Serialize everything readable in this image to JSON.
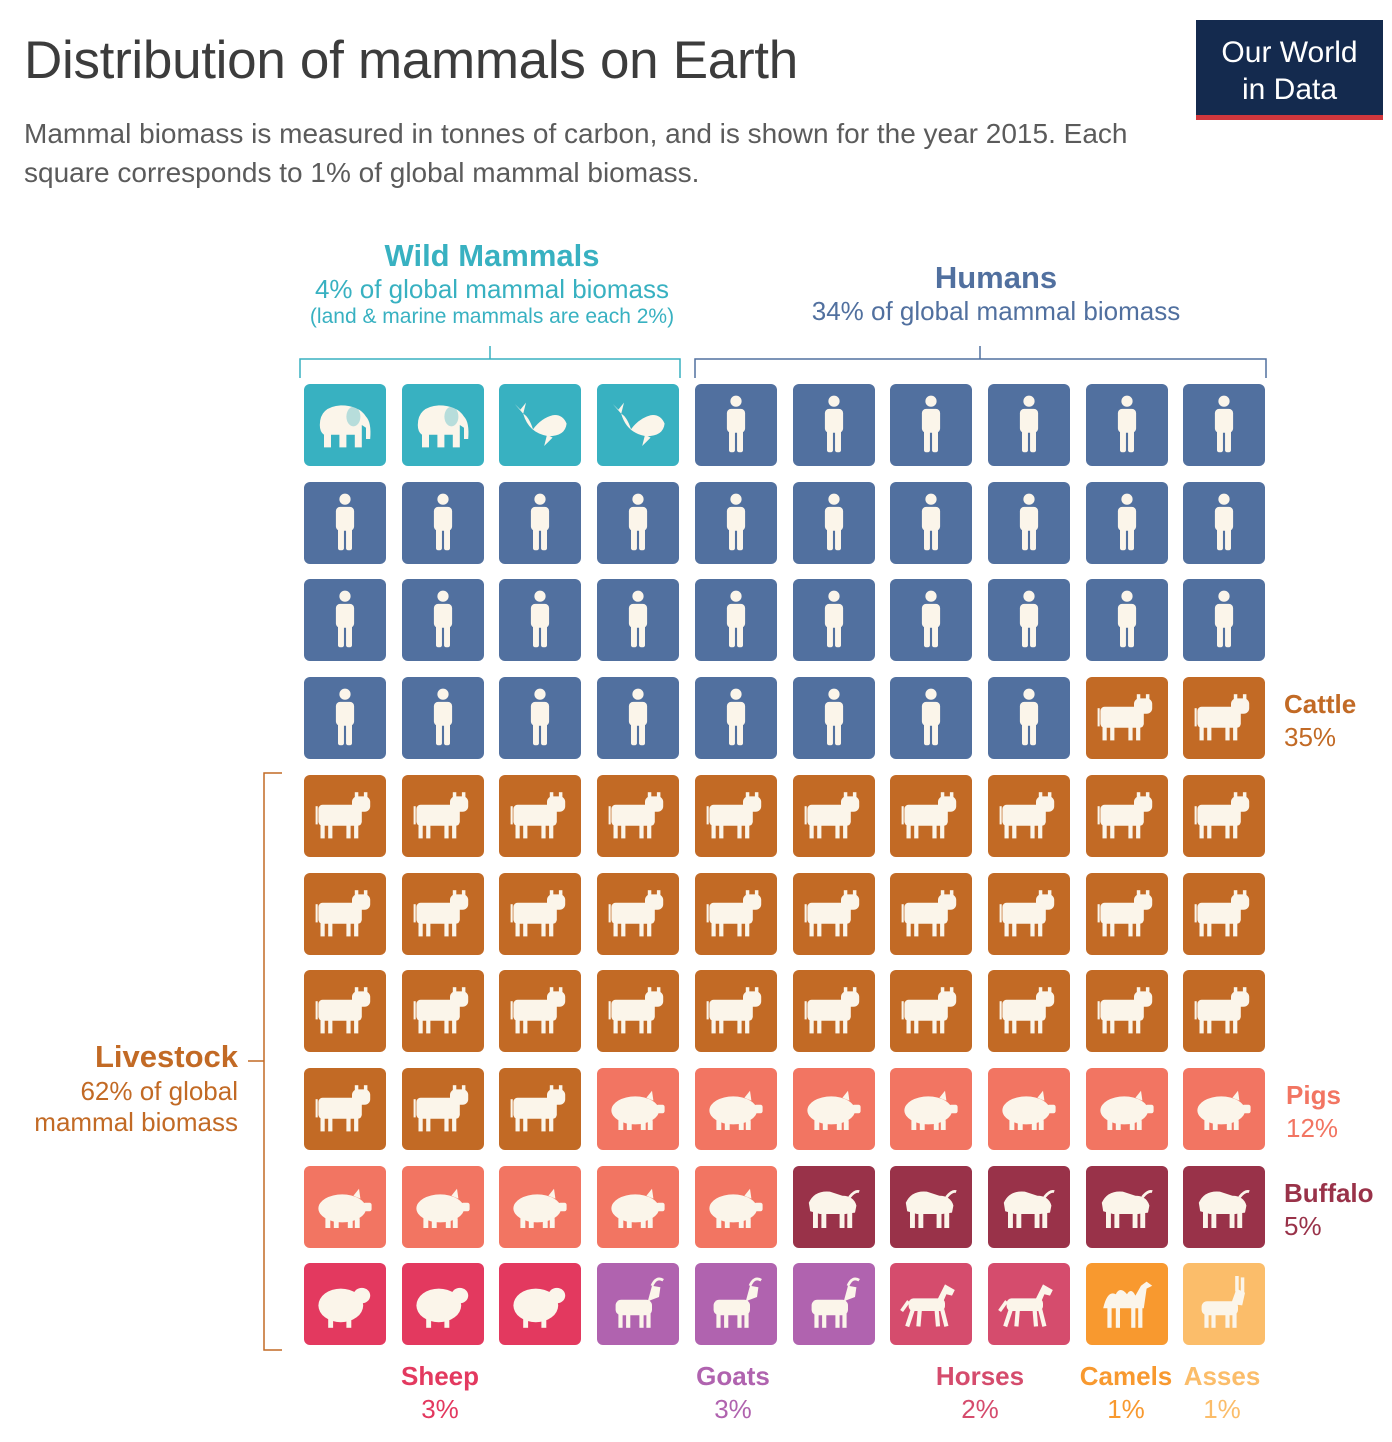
{
  "header": {
    "title": "Distribution of mammals on Earth",
    "subtitle": "Mammal biomass is measured in tonnes of carbon, and is shown for the year 2015. Each square corresponds to 1% of global mammal biomass."
  },
  "logo": {
    "line1": "Our World",
    "line2": "in Data"
  },
  "groups": {
    "wild": {
      "title": "Wild Mammals",
      "sub": "4% of global mammal biomass",
      "sub2": "(land & marine mammals are each 2%)",
      "color": "#38b1c1"
    },
    "humans": {
      "title": "Humans",
      "sub": "34% of global mammal biomass",
      "color": "#51709f"
    },
    "livestock": {
      "title": "Livestock",
      "sub1": "62% of global",
      "sub2": "mammal biomass",
      "color": "#c26a25"
    }
  },
  "labels": {
    "cattle": {
      "name": "Cattle",
      "pct": "35%"
    },
    "pigs": {
      "name": "Pigs",
      "pct": "12%"
    },
    "buffalo": {
      "name": "Buffalo",
      "pct": "5%"
    },
    "sheep": {
      "name": "Sheep",
      "pct": "3%"
    },
    "goats": {
      "name": "Goats",
      "pct": "3%"
    },
    "horses": {
      "name": "Horses",
      "pct": "2%"
    },
    "camels": {
      "name": "Camels",
      "pct": "1%"
    },
    "asses": {
      "name": "Asses",
      "pct": "1%"
    }
  },
  "chart_data": {
    "type": "waffle",
    "title": "Distribution of mammals on Earth",
    "unit": "% of global mammal biomass (2015)",
    "grid": {
      "rows": 10,
      "cols": 10
    },
    "categories": [
      {
        "name": "Land mammals",
        "group": "Wild Mammals",
        "value": 2,
        "icon": "elephant",
        "color": "#38b1c1"
      },
      {
        "name": "Marine mammals",
        "group": "Wild Mammals",
        "value": 2,
        "icon": "whale",
        "color": "#38b1c1"
      },
      {
        "name": "Humans",
        "group": "Humans",
        "value": 34,
        "icon": "person",
        "color": "#51709f"
      },
      {
        "name": "Cattle",
        "group": "Livestock",
        "value": 35,
        "icon": "cow",
        "color": "#c26a25"
      },
      {
        "name": "Pigs",
        "group": "Livestock",
        "value": 12,
        "icon": "pig",
        "color": "#f27562"
      },
      {
        "name": "Buffalo",
        "group": "Livestock",
        "value": 5,
        "icon": "buffalo",
        "color": "#993249"
      },
      {
        "name": "Sheep",
        "group": "Livestock",
        "value": 3,
        "icon": "sheep",
        "color": "#e3395f"
      },
      {
        "name": "Goats",
        "group": "Livestock",
        "value": 3,
        "icon": "goat",
        "color": "#b063af"
      },
      {
        "name": "Horses",
        "group": "Livestock",
        "value": 2,
        "icon": "horse",
        "color": "#d54c6d"
      },
      {
        "name": "Camels",
        "group": "Livestock",
        "value": 1,
        "icon": "camel",
        "color": "#f8992f"
      },
      {
        "name": "Asses",
        "group": "Livestock",
        "value": 1,
        "icon": "donkey",
        "color": "#fbbd6a"
      }
    ]
  }
}
